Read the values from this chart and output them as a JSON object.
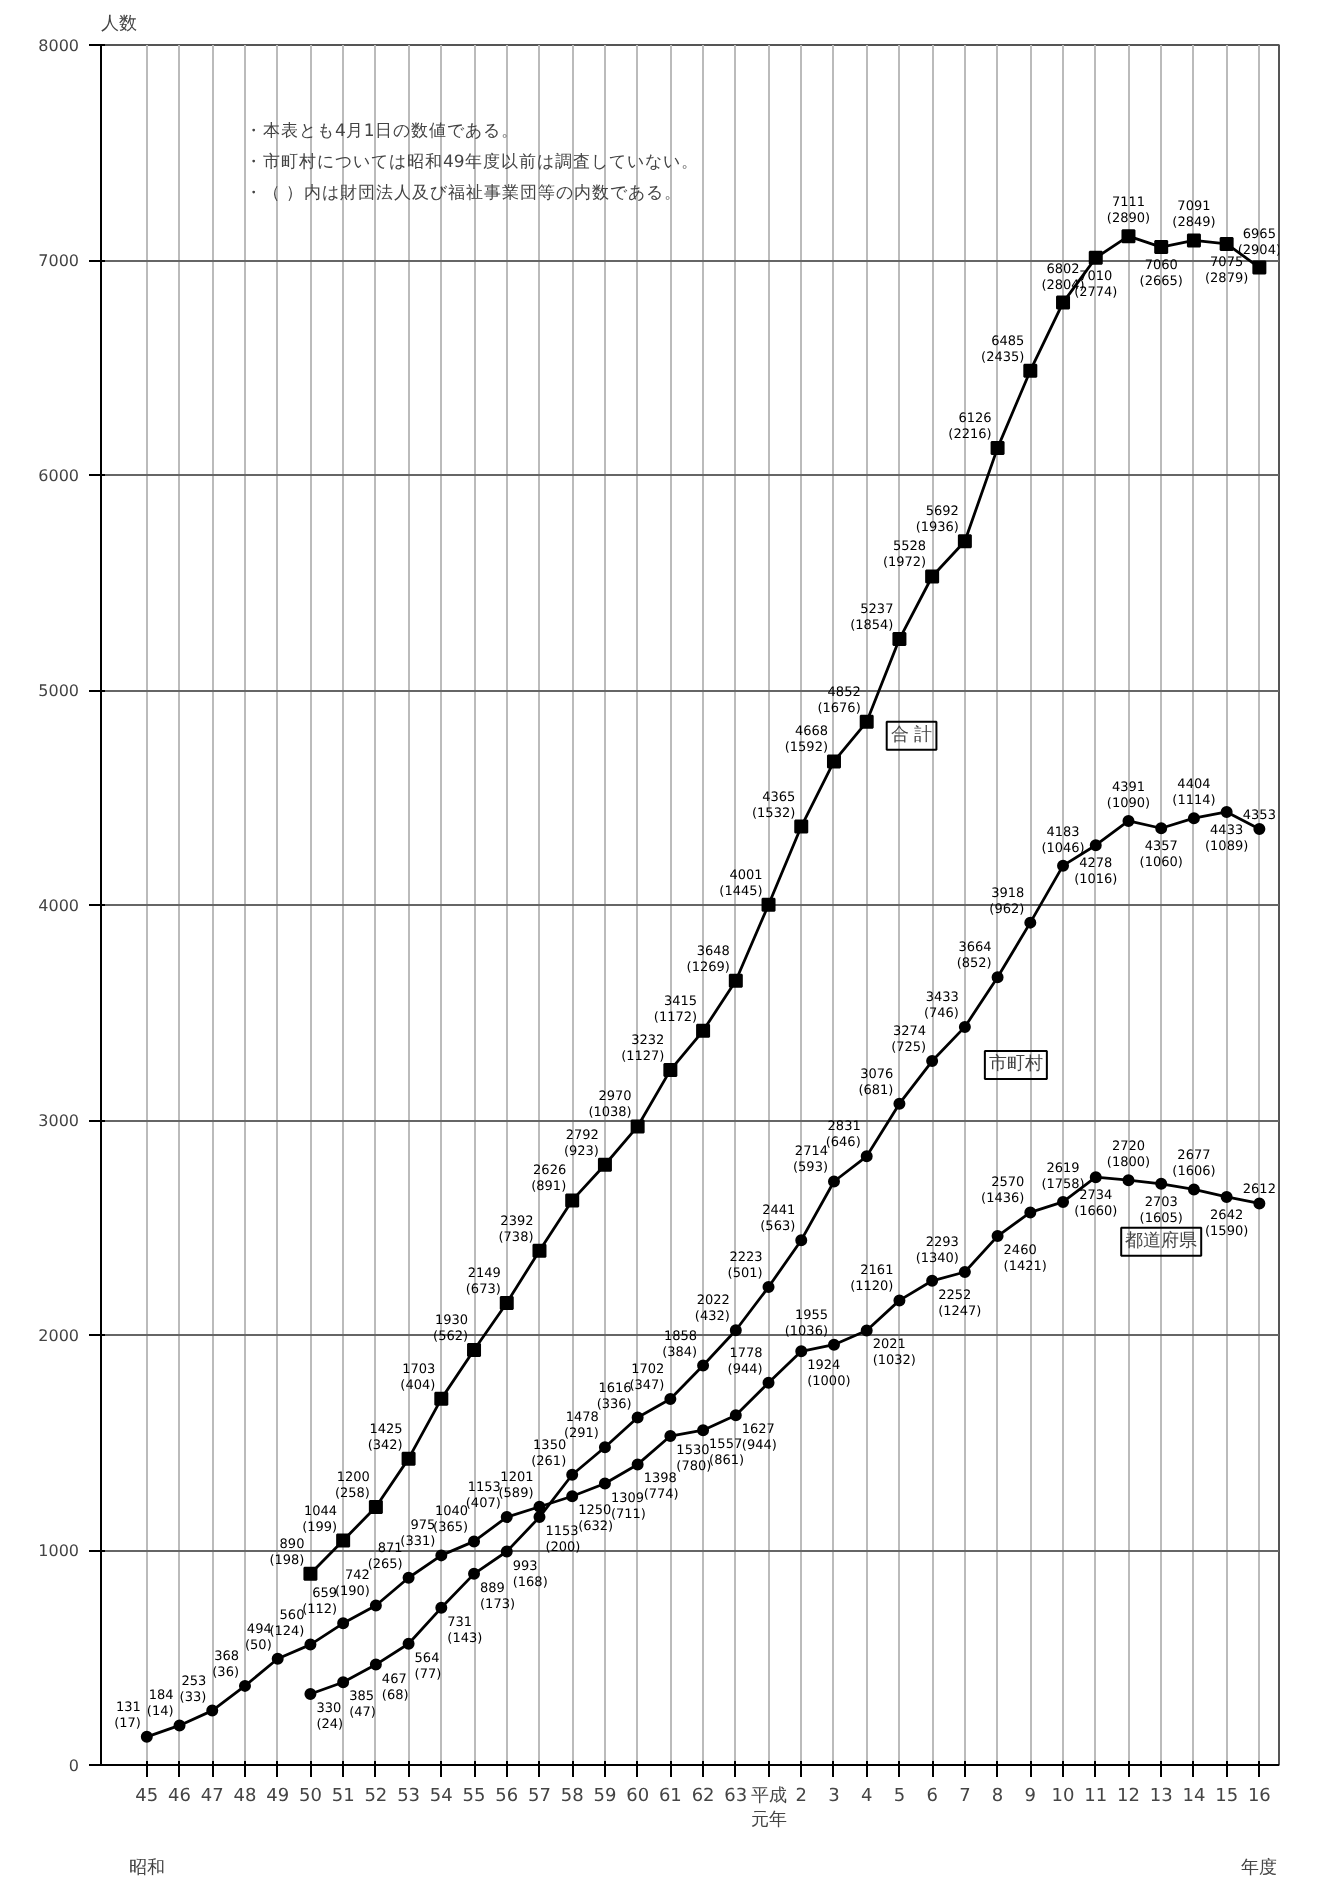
{
  "chart_data": {
    "type": "line",
    "ylabel": "人数",
    "xlabel": "年度",
    "categories": [
      "45",
      "46",
      "47",
      "48",
      "49",
      "50",
      "51",
      "52",
      "53",
      "54",
      "55",
      "56",
      "57",
      "58",
      "59",
      "60",
      "61",
      "62",
      "63",
      "平成元年",
      "2",
      "3",
      "4",
      "5",
      "6",
      "7",
      "8",
      "9",
      "10",
      "11",
      "12",
      "13",
      "14",
      "15",
      "16"
    ],
    "ylim": [
      0,
      8000
    ],
    "yticks": [
      0,
      1000,
      2000,
      3000,
      4000,
      5000,
      6000,
      7000,
      8000
    ],
    "grid": true,
    "legend": false,
    "marker": "circle",
    "line_style": "solid",
    "series": [
      {
        "name": "合 計",
        "color": "#000000",
        "marker": "square",
        "values": [
          null,
          null,
          null,
          null,
          null,
          890,
          1044,
          1200,
          1425,
          1703,
          1930,
          2149,
          2392,
          2626,
          2792,
          2970,
          3232,
          3415,
          3648,
          4001,
          4365,
          4668,
          4852,
          5237,
          5528,
          5692,
          6126,
          6485,
          6802,
          7010,
          7111,
          7060,
          7091,
          7075,
          6965
        ],
        "value_labels": [
          null,
          null,
          null,
          null,
          null,
          "890 (198)",
          "1044 (199)",
          "1200 (258)",
          "1425 (342)",
          "1703 (404)",
          "1930 (562)",
          "2149 (673)",
          "2392 (738)",
          "2626 (891)",
          "2792 (923)",
          "2970 (1038)",
          "3232 (1127)",
          "3415 (1172)",
          "3648 (1269)",
          "4001 (1445)",
          "4365 (1532)",
          "4668 (1592)",
          "4852 (1676)",
          "5237 (1854)",
          "5528 (1972)",
          "5692 (1936)",
          "6126 (2216)",
          "6485 (2435)",
          "6802 (2804)",
          "7010 (2774)",
          "7111 (2890)",
          "7060 (2665)",
          "7091 (2849)",
          "7075 (2879)",
          "6965 (2904)"
        ]
      },
      {
        "name": "市町村",
        "color": "#000000",
        "values": [
          null,
          null,
          null,
          null,
          null,
          330,
          385,
          467,
          564,
          731,
          889,
          993,
          1153,
          1350,
          1478,
          1616,
          1702,
          1858,
          2022,
          2223,
          2441,
          2714,
          2831,
          3076,
          3274,
          3433,
          3664,
          3918,
          4183,
          4278,
          4391,
          4357,
          4404,
          4433,
          4353
        ],
        "value_labels": [
          null,
          null,
          null,
          null,
          null,
          "330 (24)",
          "385 (47)",
          "467 (68)",
          "564 (77)",
          "731 (143)",
          "889 (173)",
          "993 (168)",
          "1153 (200)",
          "1350 (261)",
          "1478 (291)",
          "1616 (336)",
          "1702 (347)",
          "1858 (384)",
          "2022 (432)",
          "2223 (501)",
          "2441 (563)",
          "2714 (593)",
          "2831 (646)",
          "3076 (681)",
          "3274 (725)",
          "3433 (746)",
          "3664 (852)",
          "3918 (962)",
          "4183 (1046)",
          "4278 (1016)",
          "4391 (1090)",
          "4357 (1060)",
          "4404 (1114)",
          "4433 (1089)",
          "4353"
        ]
      },
      {
        "name": "都道府県",
        "color": "#000000",
        "values": [
          131,
          184,
          253,
          368,
          494,
          560,
          659,
          742,
          871,
          975,
          1040,
          1153,
          1201,
          1250,
          1309,
          1398,
          1530,
          1557,
          1627,
          1778,
          1924,
          1955,
          2021,
          2161,
          2252,
          2293,
          2460,
          2570,
          2619,
          2734,
          2720,
          2703,
          2677,
          2642,
          2612
        ],
        "value_labels": [
          "131 (17)",
          "184 (14)",
          "253 (33)",
          "368 (36)",
          "494 (50)",
          "560 (124)",
          "659 (112)",
          "742 (190)",
          "871 (265)",
          "975 (331)",
          "1040 (365)",
          "1153 (407)",
          "1201 (589)",
          "1250 (632)",
          "1309 (711)",
          "1398 (774)",
          "1530 (780)",
          "1557 (861)",
          "1627 (944)",
          "1778 (944)",
          "1924 (1000)",
          "1955 (1036)",
          "2021 (1032)",
          "2161 (1120)",
          "2252 (1247)",
          "2293 (1340)",
          "2460 (1421)",
          "2570 (1436)",
          "2619 (1758)",
          "2734 (1660)",
          "2720 (1800)",
          "2703 (1605)",
          "2677 (1606)",
          "2642 (1590)",
          "2612"
        ]
      }
    ],
    "annotations": [
      "・本表とも4月1日の数値である。",
      "・市町村については昭和49年度以前は調査していない。",
      "・（ ）内は財団法人及び福祉事業団等の内数である。",
      "昭和"
    ]
  }
}
